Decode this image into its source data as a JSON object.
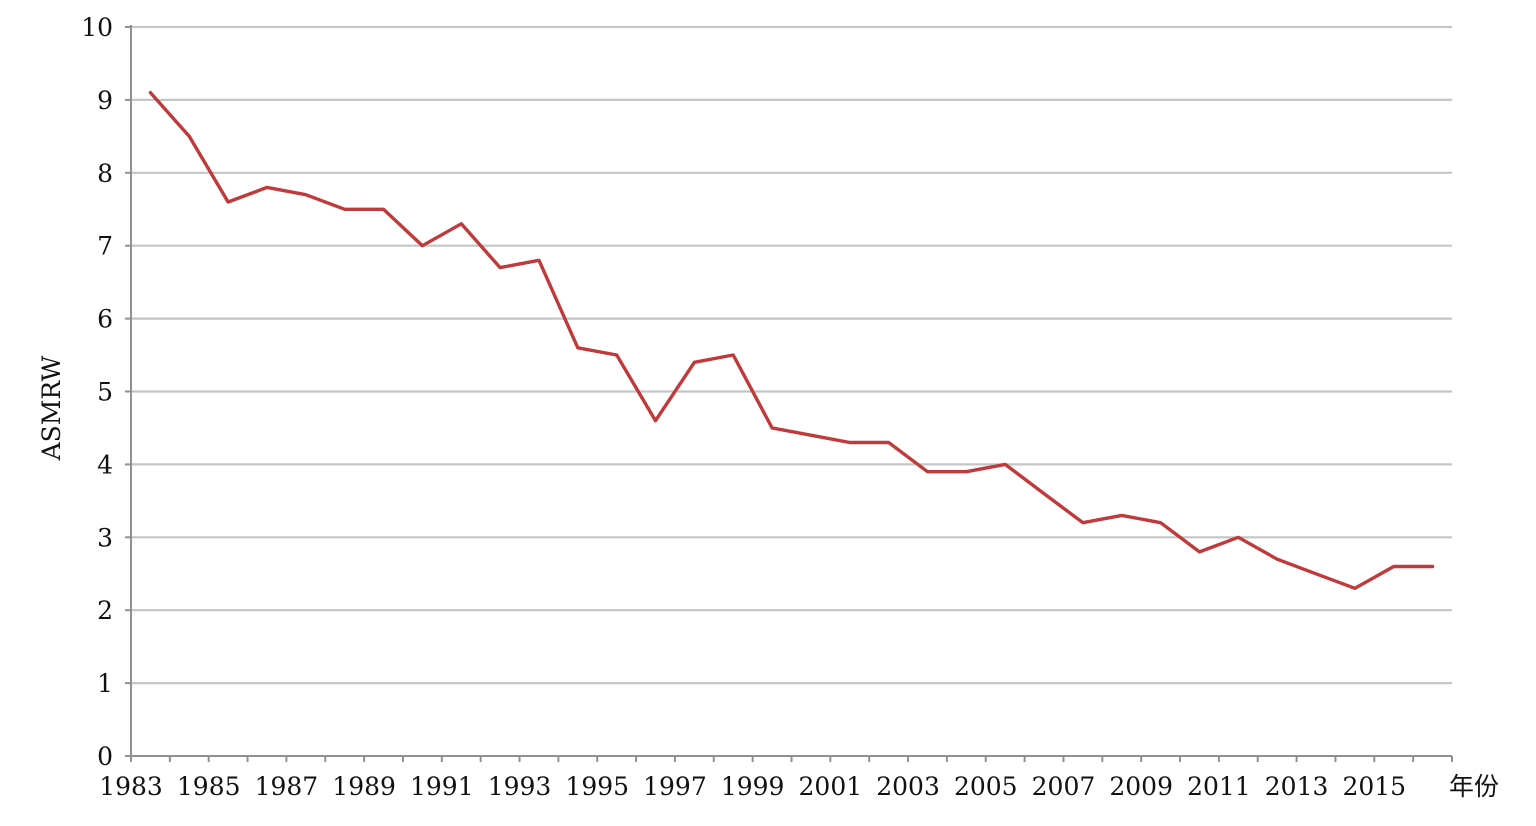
{
  "chart_data": {
    "type": "line",
    "title": "",
    "xlabel": "年份",
    "ylabel": "ASMRW",
    "ylim": [
      0,
      10
    ],
    "xlim": [
      1983,
      2017
    ],
    "y_ticks": [
      "0",
      "1",
      "2",
      "3",
      "4",
      "5",
      "6",
      "7",
      "8",
      "9",
      "10"
    ],
    "x_ticks": [
      "1983",
      "1985",
      "1987",
      "1989",
      "1991",
      "1993",
      "1995",
      "1997",
      "1999",
      "2001",
      "2003",
      "2005",
      "2007",
      "2009",
      "2011",
      "2013",
      "2015"
    ],
    "grid": true,
    "legend": "none",
    "series": [
      {
        "color": "#c0393b",
        "x": [
          1983.5,
          1984.5,
          1985.5,
          1986.5,
          1987.5,
          1988.5,
          1989.5,
          1990.5,
          1991.5,
          1992.5,
          1993.5,
          1994.5,
          1995.5,
          1996.5,
          1997.5,
          1998.5,
          1999.5,
          2000.5,
          2001.5,
          2002.5,
          2003.5,
          2004.5,
          2005.5,
          2006.5,
          2007.5,
          2008.5,
          2009.5,
          2010.5,
          2011.5,
          2012.5,
          2013.5,
          2014.5,
          2015.5,
          2016.5
        ],
        "values": [
          9.1,
          8.5,
          7.6,
          7.8,
          7.7,
          7.5,
          7.5,
          7.0,
          7.3,
          6.7,
          6.8,
          5.6,
          5.5,
          4.6,
          5.4,
          5.5,
          4.5,
          4.4,
          4.3,
          4.3,
          3.9,
          3.9,
          4.0,
          3.6,
          3.2,
          3.3,
          3.2,
          2.8,
          3.0,
          2.7,
          2.5,
          2.3,
          2.6,
          2.6
        ]
      }
    ]
  }
}
